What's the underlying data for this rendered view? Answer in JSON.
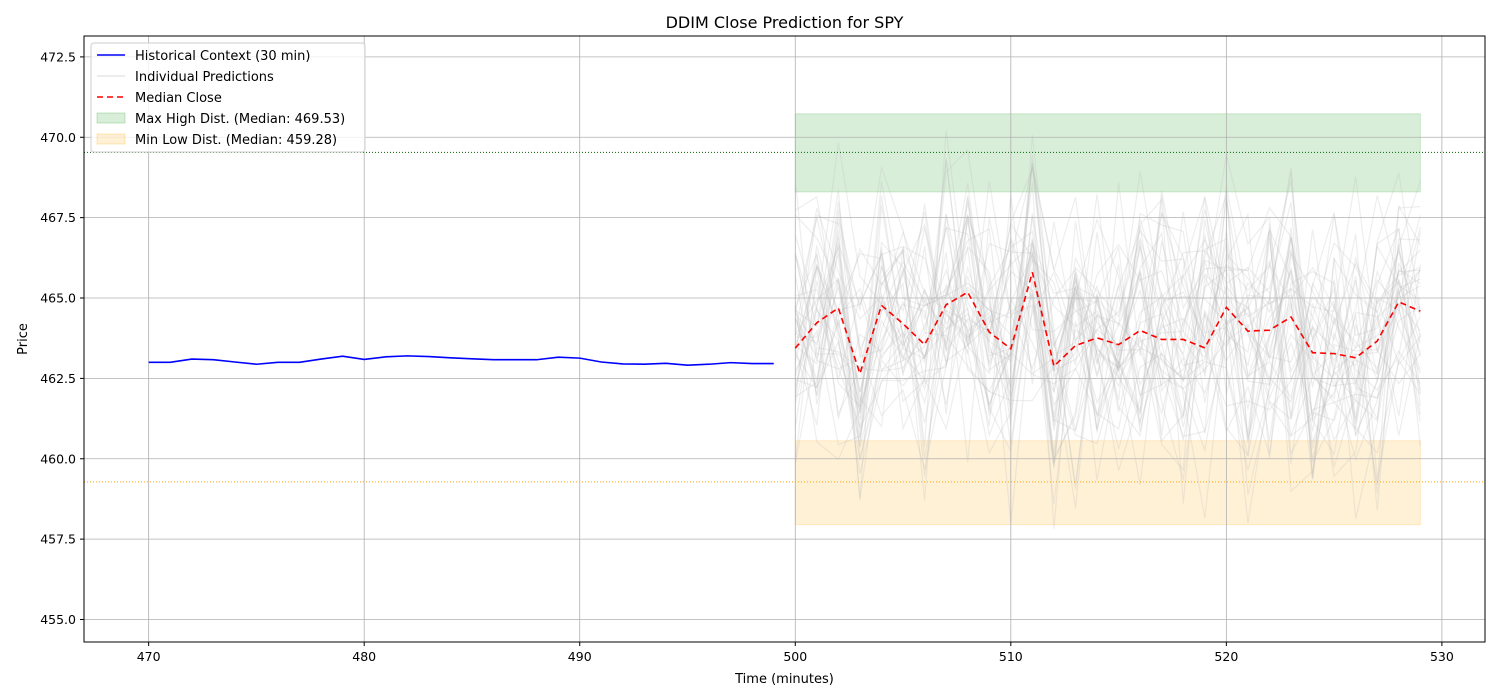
{
  "chart_data": {
    "type": "line",
    "title": "DDIM Close Prediction for SPY",
    "xlabel": "Time (minutes)",
    "ylabel": "Price",
    "xlim": [
      467.0,
      532.0
    ],
    "ylim": [
      454.3,
      473.15
    ],
    "xticks": [
      470,
      480,
      490,
      500,
      510,
      520,
      530
    ],
    "yticks": [
      455.0,
      457.5,
      460.0,
      462.5,
      465.0,
      467.5,
      470.0,
      472.5
    ],
    "xtick_labels": [
      "470",
      "480",
      "490",
      "500",
      "510",
      "520",
      "530"
    ],
    "ytick_labels": [
      "455.0",
      "457.5",
      "460.0",
      "462.5",
      "465.0",
      "467.5",
      "470.0",
      "472.5"
    ],
    "grid": true,
    "legend_position": "top-left",
    "series": [
      {
        "name": "Historical Context (30 min)",
        "color": "#0000ff",
        "style": "solid",
        "x": [
          470,
          471,
          472,
          473,
          474,
          475,
          476,
          477,
          478,
          479,
          480,
          481,
          482,
          483,
          484,
          485,
          486,
          487,
          488,
          489,
          490,
          491,
          492,
          493,
          494,
          495,
          496,
          497,
          498,
          499
        ],
        "y": [
          463.0,
          463.0,
          463.1,
          463.08,
          463.01,
          462.94,
          463.0,
          463.0,
          463.1,
          463.19,
          463.09,
          463.17,
          463.2,
          463.18,
          463.14,
          463.11,
          463.08,
          463.08,
          463.08,
          463.16,
          463.13,
          463.01,
          462.95,
          462.94,
          462.97,
          462.91,
          462.94,
          462.99,
          462.96,
          462.96
        ]
      },
      {
        "name": "Individual Predictions",
        "color": "#bbbbbb",
        "style": "solid",
        "opacity": 0.25
      },
      {
        "name": "Median Close",
        "color": "#ff0000",
        "style": "dashed",
        "x": [
          500,
          501,
          502,
          503,
          504,
          505,
          506,
          507,
          508,
          509,
          510,
          511,
          512,
          513,
          514,
          515,
          516,
          517,
          518,
          519,
          520,
          521,
          522,
          523,
          524,
          525,
          526,
          527,
          528,
          529
        ],
        "y": [
          463.44,
          464.23,
          464.69,
          462.65,
          464.77,
          464.2,
          463.55,
          464.79,
          465.18,
          463.94,
          463.42,
          465.8,
          462.88,
          463.52,
          463.76,
          463.55,
          463.99,
          463.71,
          463.71,
          463.45,
          464.71,
          463.97,
          464.0,
          464.41,
          463.3,
          463.27,
          463.14,
          463.66,
          464.88,
          464.59
        ]
      }
    ],
    "bands": [
      {
        "name": "Max High Dist. (Median: 469.53)",
        "color": "#2ca02c",
        "opacity": 0.18,
        "x": [
          500,
          529
        ],
        "y": [
          468.3,
          470.73
        ],
        "median": 469.53
      },
      {
        "name": "Min Low Dist. (Median: 459.28)",
        "color": "#ffa500",
        "opacity": 0.16,
        "x": [
          500,
          529
        ],
        "y": [
          457.95,
          460.56
        ],
        "median": 459.28
      }
    ],
    "hlines": [
      {
        "y": 469.53,
        "color": "#006400",
        "style": "dotted"
      },
      {
        "y": 459.28,
        "color": "#ffa500",
        "style": "dotted"
      }
    ]
  }
}
